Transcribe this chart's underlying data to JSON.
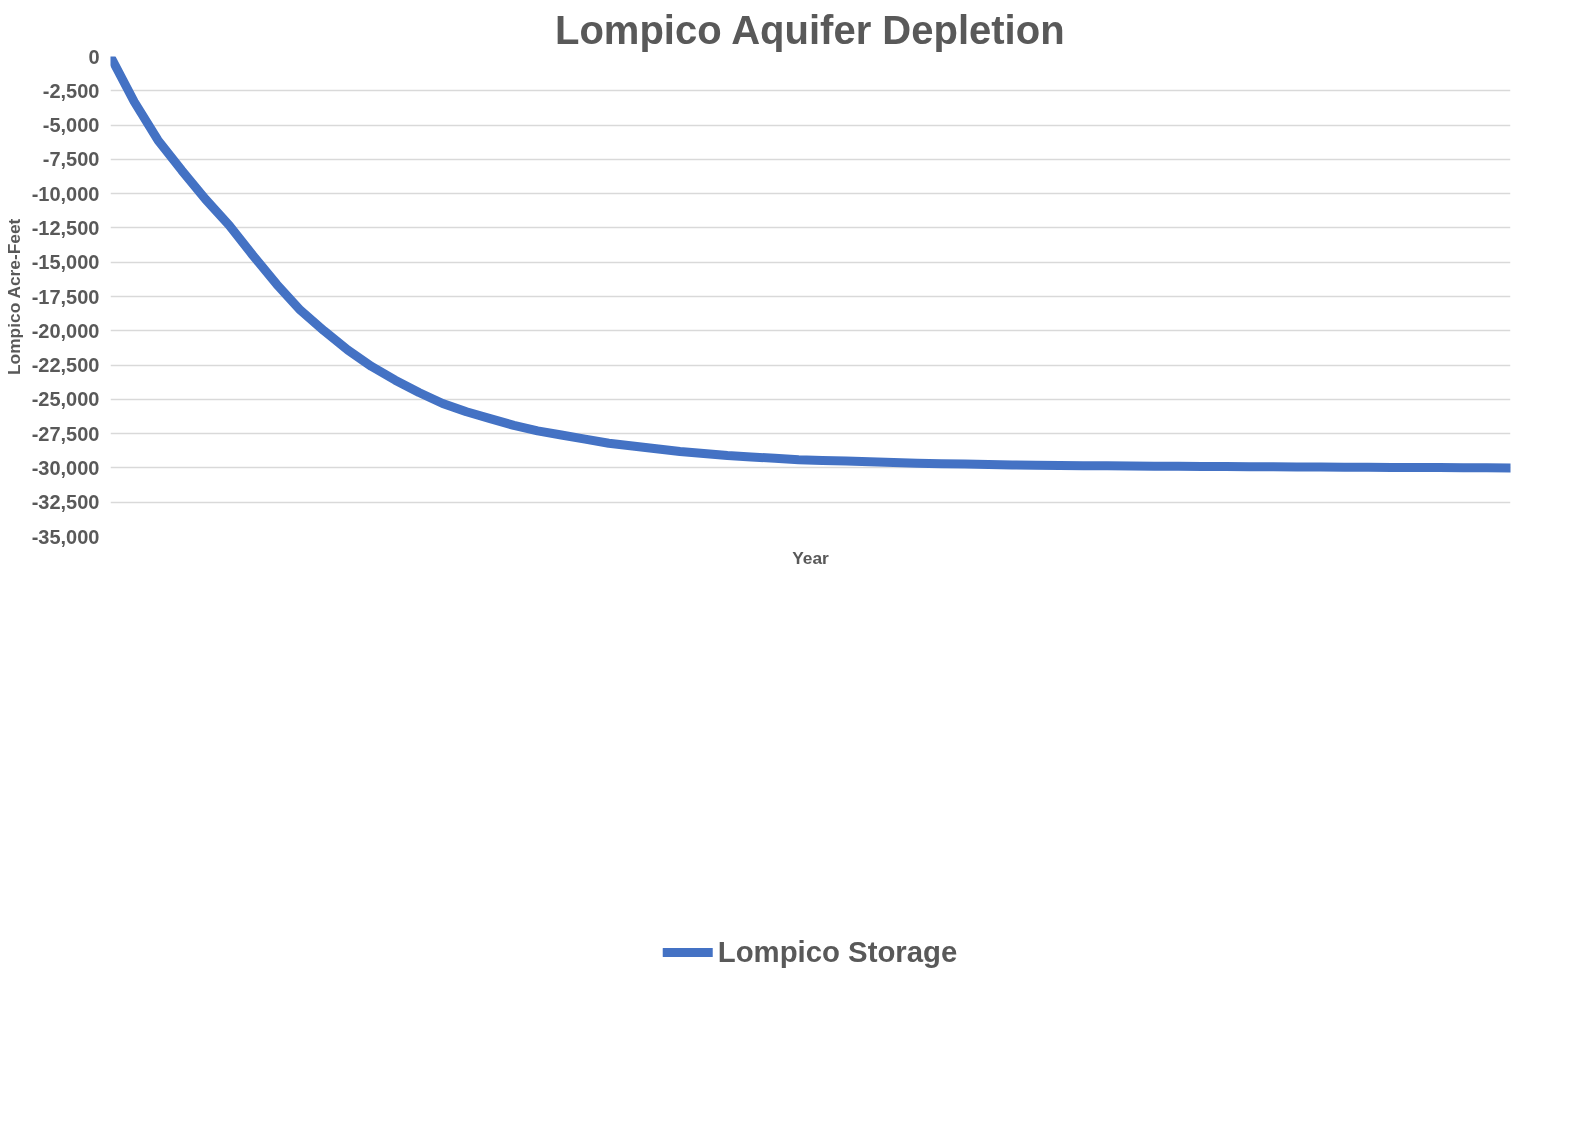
{
  "chart_data": {
    "type": "line",
    "title": "Lompico Aquifer Depletion",
    "xlabel": "Year",
    "ylabel": "Lompico Acre-Feet",
    "categories": [
      null,
      null,
      null,
      null,
      null,
      null,
      null,
      null,
      null,
      null,
      null,
      null,
      null,
      null,
      null,
      null,
      null,
      null,
      null,
      null,
      null,
      null,
      null,
      null,
      null,
      null,
      null,
      null,
      null,
      null,
      null,
      null,
      null,
      null,
      null,
      null,
      null,
      null,
      null,
      null,
      null,
      null,
      null,
      null,
      null,
      null,
      null,
      null,
      null,
      null,
      null,
      null,
      null,
      null,
      null,
      null,
      null,
      null,
      null,
      null
    ],
    "series": [
      {
        "name": "Lompico Storage",
        "color": "#4472c4",
        "values": [
          0,
          -3300,
          -6100,
          -8300,
          -10400,
          -12300,
          -14500,
          -16600,
          -18500,
          -20000,
          -21400,
          -22600,
          -23600,
          -24500,
          -25300,
          -25900,
          -26400,
          -26900,
          -27300,
          -27600,
          -27900,
          -28200,
          -28400,
          -28600,
          -28800,
          -28950,
          -29100,
          -29200,
          -29300,
          -29400,
          -29450,
          -29500,
          -29550,
          -29600,
          -29650,
          -29700,
          -29720,
          -29750,
          -29780,
          -29800,
          -29820,
          -29840,
          -29850,
          -29860,
          -29870,
          -29880,
          -29890,
          -29900,
          -29910,
          -29920,
          -29930,
          -29940,
          -29950,
          -29955,
          -29960,
          -29970,
          -29975,
          -29980,
          -29990,
          -30000
        ]
      }
    ],
    "ylim": [
      -35000,
      0
    ],
    "yticks": [
      0,
      {
        "value": -2500,
        "label": "-2,500"
      },
      {
        "value": -5000,
        "label": "-5,000"
      },
      {
        "value": -7500,
        "label": "-7,500"
      },
      {
        "value": -10000,
        "label": "-10,000"
      },
      {
        "value": -12500,
        "label": "-12,500"
      },
      {
        "value": -15000,
        "label": "-15,000"
      },
      {
        "value": -17500,
        "label": "-17,500"
      },
      {
        "value": -20000,
        "label": "-20,000"
      },
      {
        "value": -22500,
        "label": "-22,500"
      },
      {
        "value": -25000,
        "label": "-25,000"
      },
      {
        "value": -27500,
        "label": "-27,500"
      },
      {
        "value": -30000,
        "label": "-30,000"
      },
      {
        "value": -32500,
        "label": "-32,500"
      },
      {
        "value": -35000,
        "label": "-35,000"
      }
    ],
    "grid": "y",
    "legend": "bottom",
    "tick_labels": "y",
    "marker": "none",
    "line_style": "solid"
  }
}
